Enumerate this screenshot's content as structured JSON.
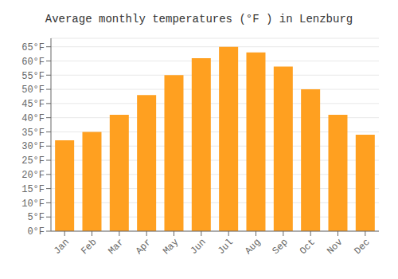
{
  "chart_data": {
    "type": "bar",
    "title": "Average monthly temperatures (°F ) in Lenzburg",
    "categories": [
      "Jan",
      "Feb",
      "Mar",
      "Apr",
      "May",
      "Jun",
      "Jul",
      "Aug",
      "Sep",
      "Oct",
      "Nov",
      "Dec"
    ],
    "values": [
      32,
      35,
      41,
      48,
      55,
      61,
      65,
      63,
      58,
      50,
      41,
      34
    ],
    "color": "#FFA020",
    "ylim": [
      0,
      68
    ],
    "yticks": [
      {
        "value": 0,
        "label": "0°F"
      },
      {
        "value": 5,
        "label": "5°F"
      },
      {
        "value": 10,
        "label": "10°F"
      },
      {
        "value": 15,
        "label": "15°F"
      },
      {
        "value": 20,
        "label": "20°F"
      },
      {
        "value": 25,
        "label": "25°F"
      },
      {
        "value": 30,
        "label": "30°F"
      },
      {
        "value": 35,
        "label": "35°F"
      },
      {
        "value": 40,
        "label": "40°F"
      },
      {
        "value": 45,
        "label": "45°F"
      },
      {
        "value": 50,
        "label": "50°F"
      },
      {
        "value": 55,
        "label": "55°F"
      },
      {
        "value": 60,
        "label": "60°F"
      },
      {
        "value": 65,
        "label": "65°F"
      }
    ],
    "grid": true
  }
}
